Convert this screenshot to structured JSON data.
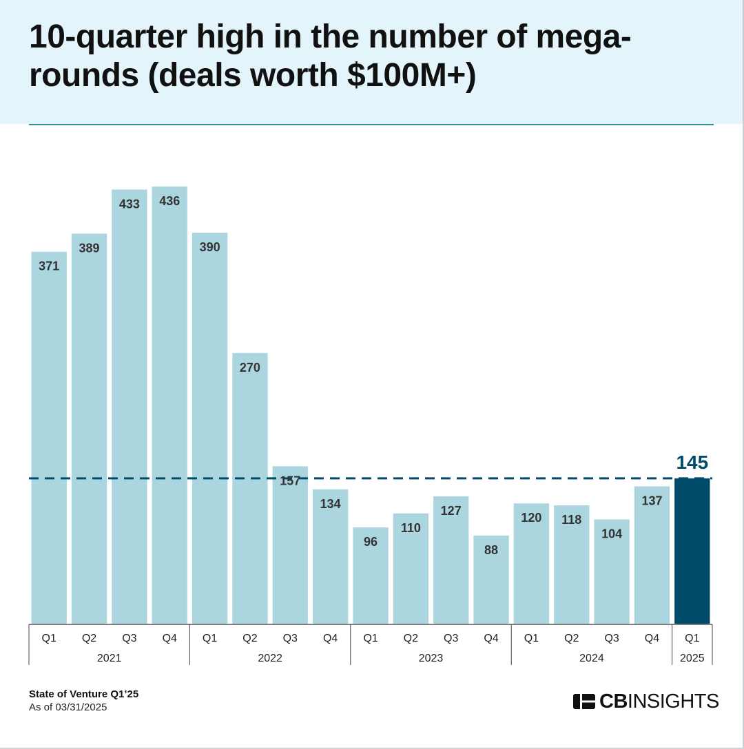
{
  "header": {
    "title": "10-quarter high in the number of mega-rounds (deals worth $100M+)"
  },
  "footer": {
    "source": "State of Venture Q1’25",
    "as_of": "As of 03/31/2025",
    "logo_bold": "CB",
    "logo_rest": "INSIGHTS"
  },
  "colors": {
    "accent_light": "#acd6df",
    "accent_dark": "#004a6a",
    "header_bg": "#e3f5fa",
    "rule": "#2a8f96"
  },
  "chart_data": {
    "type": "bar",
    "title": "10-quarter high in the number of mega-rounds (deals worth $100M+)",
    "categories": [
      "Q1",
      "Q2",
      "Q3",
      "Q4",
      "Q1",
      "Q2",
      "Q3",
      "Q4",
      "Q1",
      "Q2",
      "Q3",
      "Q4",
      "Q1",
      "Q2",
      "Q3",
      "Q4",
      "Q1"
    ],
    "groups": [
      {
        "label": "2021",
        "count": 4
      },
      {
        "label": "2022",
        "count": 4
      },
      {
        "label": "2023",
        "count": 4
      },
      {
        "label": "2024",
        "count": 4
      },
      {
        "label": "2025",
        "count": 1
      }
    ],
    "values": [
      371,
      389,
      433,
      436,
      390,
      270,
      157,
      134,
      96,
      110,
      127,
      88,
      120,
      118,
      104,
      137,
      145
    ],
    "highlight_index": 16,
    "reference_line": {
      "value": 145,
      "style": "dashed"
    },
    "ylim": [
      0,
      436
    ],
    "grid": false,
    "legend": "none"
  }
}
